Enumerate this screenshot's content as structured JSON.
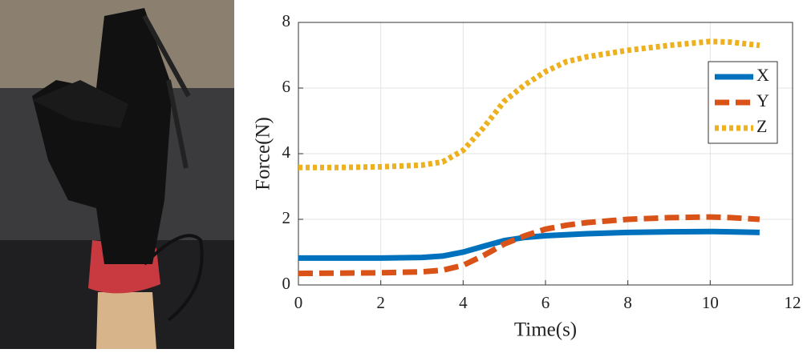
{
  "chart_data": {
    "type": "line",
    "xlabel": "Time(s)",
    "ylabel": "Force(N)",
    "x": [
      0,
      1,
      2,
      3,
      3.5,
      4,
      4.5,
      5,
      5.5,
      6,
      6.5,
      7,
      8,
      9,
      10,
      10.5,
      11.2
    ],
    "series": [
      {
        "name": "X",
        "color": "#0072bd",
        "dash": "solid",
        "values": [
          0.82,
          0.82,
          0.82,
          0.84,
          0.88,
          1.0,
          1.18,
          1.35,
          1.45,
          1.5,
          1.53,
          1.56,
          1.6,
          1.62,
          1.63,
          1.62,
          1.6
        ]
      },
      {
        "name": "Y",
        "color": "#d95319",
        "dash": "dashed",
        "values": [
          0.35,
          0.36,
          0.37,
          0.4,
          0.45,
          0.6,
          0.9,
          1.25,
          1.5,
          1.7,
          1.82,
          1.9,
          2.0,
          2.05,
          2.07,
          2.05,
          2.0
        ]
      },
      {
        "name": "Z",
        "color": "#edb120",
        "dash": "dotted",
        "values": [
          3.58,
          3.58,
          3.6,
          3.65,
          3.75,
          4.1,
          4.8,
          5.6,
          6.1,
          6.5,
          6.8,
          6.95,
          7.15,
          7.3,
          7.42,
          7.4,
          7.3
        ]
      }
    ],
    "xlim": [
      0,
      12
    ],
    "xticks": [
      0,
      2,
      4,
      6,
      8,
      10,
      12
    ],
    "ylim": [
      0,
      8
    ],
    "yticks": [
      0,
      2,
      4,
      6,
      8
    ],
    "grid": true,
    "legend": "upper right"
  }
}
